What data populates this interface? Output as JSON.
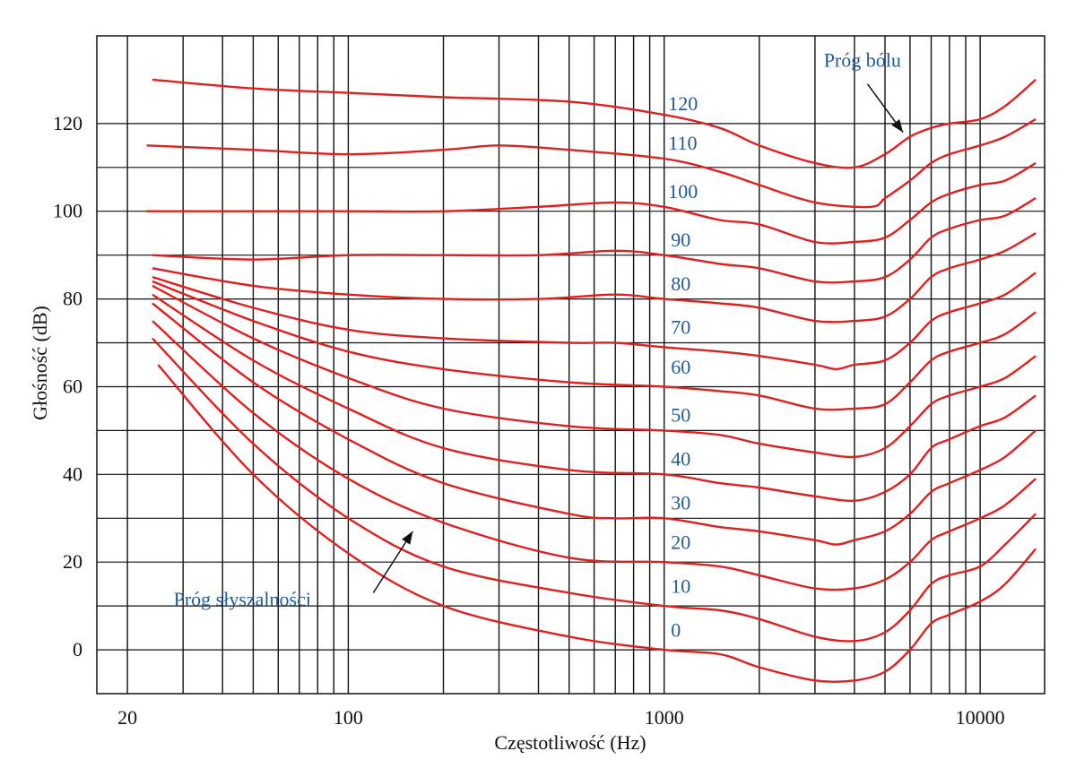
{
  "chart_data": {
    "type": "line",
    "title": "",
    "xlabel": "Częstotliwość (Hz)",
    "ylabel": "Głośność (dB)",
    "x_scale": "log",
    "xlim": [
      16,
      16000
    ],
    "ylim": [
      -10,
      140
    ],
    "x_ticks": [
      {
        "value": 20,
        "label": "20"
      },
      {
        "value": 100,
        "label": "100"
      },
      {
        "value": 1000,
        "label": "1000"
      },
      {
        "value": 10000,
        "label": "10000"
      }
    ],
    "y_ticks": [
      {
        "value": 0,
        "label": "0"
      },
      {
        "value": 20,
        "label": "20"
      },
      {
        "value": 40,
        "label": "40"
      },
      {
        "value": 60,
        "label": "60"
      },
      {
        "value": 80,
        "label": "80"
      },
      {
        "value": 100,
        "label": "100"
      },
      {
        "value": 120,
        "label": "120"
      }
    ],
    "grid": true,
    "line_color": "#e0201e",
    "label_color": "#1f5a9a",
    "series": [
      {
        "name": "0",
        "points": [
          [
            25,
            65
          ],
          [
            50,
            40
          ],
          [
            100,
            22
          ],
          [
            200,
            10
          ],
          [
            500,
            3
          ],
          [
            1000,
            0
          ],
          [
            1500,
            -1
          ],
          [
            2000,
            -4
          ],
          [
            3000,
            -7
          ],
          [
            4000,
            -7
          ],
          [
            5000,
            -5
          ],
          [
            6000,
            0
          ],
          [
            7000,
            6
          ],
          [
            8000,
            8
          ],
          [
            10000,
            11
          ],
          [
            12000,
            15
          ],
          [
            15000,
            23
          ]
        ]
      },
      {
        "name": "10",
        "points": [
          [
            24,
            71
          ],
          [
            50,
            47
          ],
          [
            100,
            30
          ],
          [
            200,
            19
          ],
          [
            500,
            13
          ],
          [
            1000,
            10
          ],
          [
            1500,
            9
          ],
          [
            2000,
            7
          ],
          [
            3000,
            3
          ],
          [
            4000,
            2
          ],
          [
            5000,
            4
          ],
          [
            6000,
            9
          ],
          [
            7000,
            15
          ],
          [
            8000,
            17
          ],
          [
            10000,
            19
          ],
          [
            12000,
            24
          ],
          [
            15000,
            31
          ]
        ]
      },
      {
        "name": "20",
        "points": [
          [
            24,
            75
          ],
          [
            50,
            54
          ],
          [
            100,
            39
          ],
          [
            200,
            29
          ],
          [
            500,
            21
          ],
          [
            1000,
            20
          ],
          [
            1500,
            19
          ],
          [
            2000,
            17
          ],
          [
            3000,
            14
          ],
          [
            4000,
            14
          ],
          [
            5000,
            16
          ],
          [
            6000,
            20
          ],
          [
            7000,
            25
          ],
          [
            8000,
            27
          ],
          [
            10000,
            30
          ],
          [
            12000,
            33
          ],
          [
            15000,
            39
          ]
        ]
      },
      {
        "name": "30",
        "points": [
          [
            24,
            79
          ],
          [
            50,
            61
          ],
          [
            100,
            48
          ],
          [
            200,
            38
          ],
          [
            500,
            31
          ],
          [
            700,
            30
          ],
          [
            1000,
            30
          ],
          [
            1500,
            28
          ],
          [
            2000,
            27
          ],
          [
            3000,
            25
          ],
          [
            3500,
            24
          ],
          [
            4000,
            25
          ],
          [
            5000,
            27
          ],
          [
            6000,
            31
          ],
          [
            7000,
            36
          ],
          [
            8000,
            38
          ],
          [
            10000,
            41
          ],
          [
            12000,
            44
          ],
          [
            15000,
            50
          ]
        ]
      },
      {
        "name": "40",
        "points": [
          [
            24,
            81
          ],
          [
            50,
            66
          ],
          [
            100,
            55
          ],
          [
            200,
            46
          ],
          [
            500,
            41
          ],
          [
            1000,
            40
          ],
          [
            1500,
            38
          ],
          [
            2000,
            37
          ],
          [
            3000,
            35
          ],
          [
            4000,
            34
          ],
          [
            5000,
            36
          ],
          [
            6000,
            40
          ],
          [
            7000,
            46
          ],
          [
            8000,
            48
          ],
          [
            10000,
            51
          ],
          [
            12000,
            53
          ],
          [
            15000,
            58
          ]
        ]
      },
      {
        "name": "50",
        "points": [
          [
            24,
            83
          ],
          [
            50,
            71
          ],
          [
            100,
            62
          ],
          [
            200,
            55
          ],
          [
            500,
            51
          ],
          [
            1000,
            50
          ],
          [
            1500,
            49
          ],
          [
            2000,
            47
          ],
          [
            3000,
            45
          ],
          [
            4000,
            44
          ],
          [
            5000,
            46
          ],
          [
            6000,
            51
          ],
          [
            7000,
            56
          ],
          [
            8000,
            58
          ],
          [
            10000,
            60
          ],
          [
            12000,
            62
          ],
          [
            15000,
            67
          ]
        ]
      },
      {
        "name": "60",
        "points": [
          [
            24,
            84
          ],
          [
            50,
            75
          ],
          [
            100,
            68
          ],
          [
            200,
            64
          ],
          [
            500,
            61
          ],
          [
            1000,
            60
          ],
          [
            1500,
            59
          ],
          [
            2000,
            58
          ],
          [
            3000,
            55
          ],
          [
            4000,
            55
          ],
          [
            5000,
            56
          ],
          [
            6000,
            61
          ],
          [
            7000,
            66
          ],
          [
            8000,
            68
          ],
          [
            10000,
            70
          ],
          [
            12000,
            72
          ],
          [
            15000,
            77
          ]
        ]
      },
      {
        "name": "70",
        "points": [
          [
            24,
            85
          ],
          [
            50,
            78
          ],
          [
            100,
            73
          ],
          [
            200,
            71
          ],
          [
            500,
            70
          ],
          [
            700,
            70
          ],
          [
            1000,
            69
          ],
          [
            1500,
            68
          ],
          [
            2000,
            67
          ],
          [
            3000,
            65
          ],
          [
            3500,
            64
          ],
          [
            4000,
            65
          ],
          [
            5000,
            66
          ],
          [
            6000,
            70
          ],
          [
            7000,
            75
          ],
          [
            8000,
            77
          ],
          [
            10000,
            79
          ],
          [
            12000,
            81
          ],
          [
            15000,
            86
          ]
        ]
      },
      {
        "name": "80",
        "points": [
          [
            24,
            87
          ],
          [
            50,
            83
          ],
          [
            100,
            81
          ],
          [
            200,
            80
          ],
          [
            400,
            80
          ],
          [
            700,
            81
          ],
          [
            1000,
            80
          ],
          [
            1500,
            79
          ],
          [
            2000,
            78
          ],
          [
            3000,
            75
          ],
          [
            4000,
            75
          ],
          [
            5000,
            76
          ],
          [
            6000,
            80
          ],
          [
            7000,
            85
          ],
          [
            8000,
            87
          ],
          [
            10000,
            89
          ],
          [
            12000,
            91
          ],
          [
            15000,
            95
          ]
        ]
      },
      {
        "name": "90",
        "points": [
          [
            24,
            90
          ],
          [
            50,
            89
          ],
          [
            100,
            90
          ],
          [
            200,
            90
          ],
          [
            400,
            90
          ],
          [
            700,
            91
          ],
          [
            1000,
            90
          ],
          [
            1500,
            88
          ],
          [
            2000,
            87
          ],
          [
            3000,
            84
          ],
          [
            4000,
            84
          ],
          [
            5000,
            85
          ],
          [
            6000,
            89
          ],
          [
            7000,
            94
          ],
          [
            8000,
            96
          ],
          [
            10000,
            98
          ],
          [
            12000,
            99
          ],
          [
            15000,
            103
          ]
        ]
      },
      {
        "name": "100",
        "points": [
          [
            23,
            100
          ],
          [
            50,
            100
          ],
          [
            100,
            100
          ],
          [
            200,
            100
          ],
          [
            400,
            101
          ],
          [
            700,
            102
          ],
          [
            1000,
            101
          ],
          [
            1500,
            98
          ],
          [
            2000,
            97
          ],
          [
            3000,
            93
          ],
          [
            4000,
            93
          ],
          [
            5000,
            94
          ],
          [
            6000,
            98
          ],
          [
            7000,
            102
          ],
          [
            8000,
            104
          ],
          [
            10000,
            106
          ],
          [
            12000,
            107
          ],
          [
            15000,
            111
          ]
        ]
      },
      {
        "name": "110",
        "points": [
          [
            23,
            115
          ],
          [
            50,
            114
          ],
          [
            100,
            113
          ],
          [
            200,
            114
          ],
          [
            300,
            115
          ],
          [
            500,
            114
          ],
          [
            1000,
            112
          ],
          [
            1500,
            109
          ],
          [
            2000,
            106
          ],
          [
            3000,
            102
          ],
          [
            4500,
            101
          ],
          [
            5000,
            103
          ],
          [
            6000,
            107
          ],
          [
            7000,
            111
          ],
          [
            8000,
            113
          ],
          [
            10000,
            115
          ],
          [
            12000,
            117
          ],
          [
            15000,
            121
          ]
        ]
      },
      {
        "name": "120",
        "points": [
          [
            24,
            130
          ],
          [
            50,
            128
          ],
          [
            100,
            127
          ],
          [
            200,
            126
          ],
          [
            500,
            125
          ],
          [
            1000,
            122
          ],
          [
            1500,
            119
          ],
          [
            2000,
            115
          ],
          [
            3000,
            111
          ],
          [
            4000,
            110
          ],
          [
            5000,
            113
          ],
          [
            6000,
            117
          ],
          [
            7000,
            119
          ],
          [
            8000,
            120
          ],
          [
            10000,
            121
          ],
          [
            12000,
            124
          ],
          [
            15000,
            130
          ]
        ]
      }
    ],
    "curve_labels": [
      {
        "text": "0",
        "x": 1050,
        "y": 3
      },
      {
        "text": "10",
        "x": 1050,
        "y": 13
      },
      {
        "text": "20",
        "x": 1050,
        "y": 23
      },
      {
        "text": "30",
        "x": 1050,
        "y": 32
      },
      {
        "text": "40",
        "x": 1050,
        "y": 42
      },
      {
        "text": "50",
        "x": 1050,
        "y": 52
      },
      {
        "text": "60",
        "x": 1050,
        "y": 63
      },
      {
        "text": "70",
        "x": 1050,
        "y": 72
      },
      {
        "text": "80",
        "x": 1050,
        "y": 82
      },
      {
        "text": "90",
        "x": 1050,
        "y": 92
      },
      {
        "text": "100",
        "x": 1030,
        "y": 103
      },
      {
        "text": "110",
        "x": 1030,
        "y": 114
      },
      {
        "text": "120",
        "x": 1030,
        "y": 123
      }
    ],
    "annotations": [
      {
        "text": "Próg słyszalności",
        "text_x": 28,
        "text_y": 10,
        "arrow_from": [
          120,
          13
        ],
        "arrow_to": [
          160,
          27
        ]
      },
      {
        "text": "Próg bólu",
        "text_x": 3200,
        "text_y": 133,
        "arrow_from": [
          4400,
          129
        ],
        "arrow_to": [
          5700,
          118
        ]
      }
    ]
  }
}
